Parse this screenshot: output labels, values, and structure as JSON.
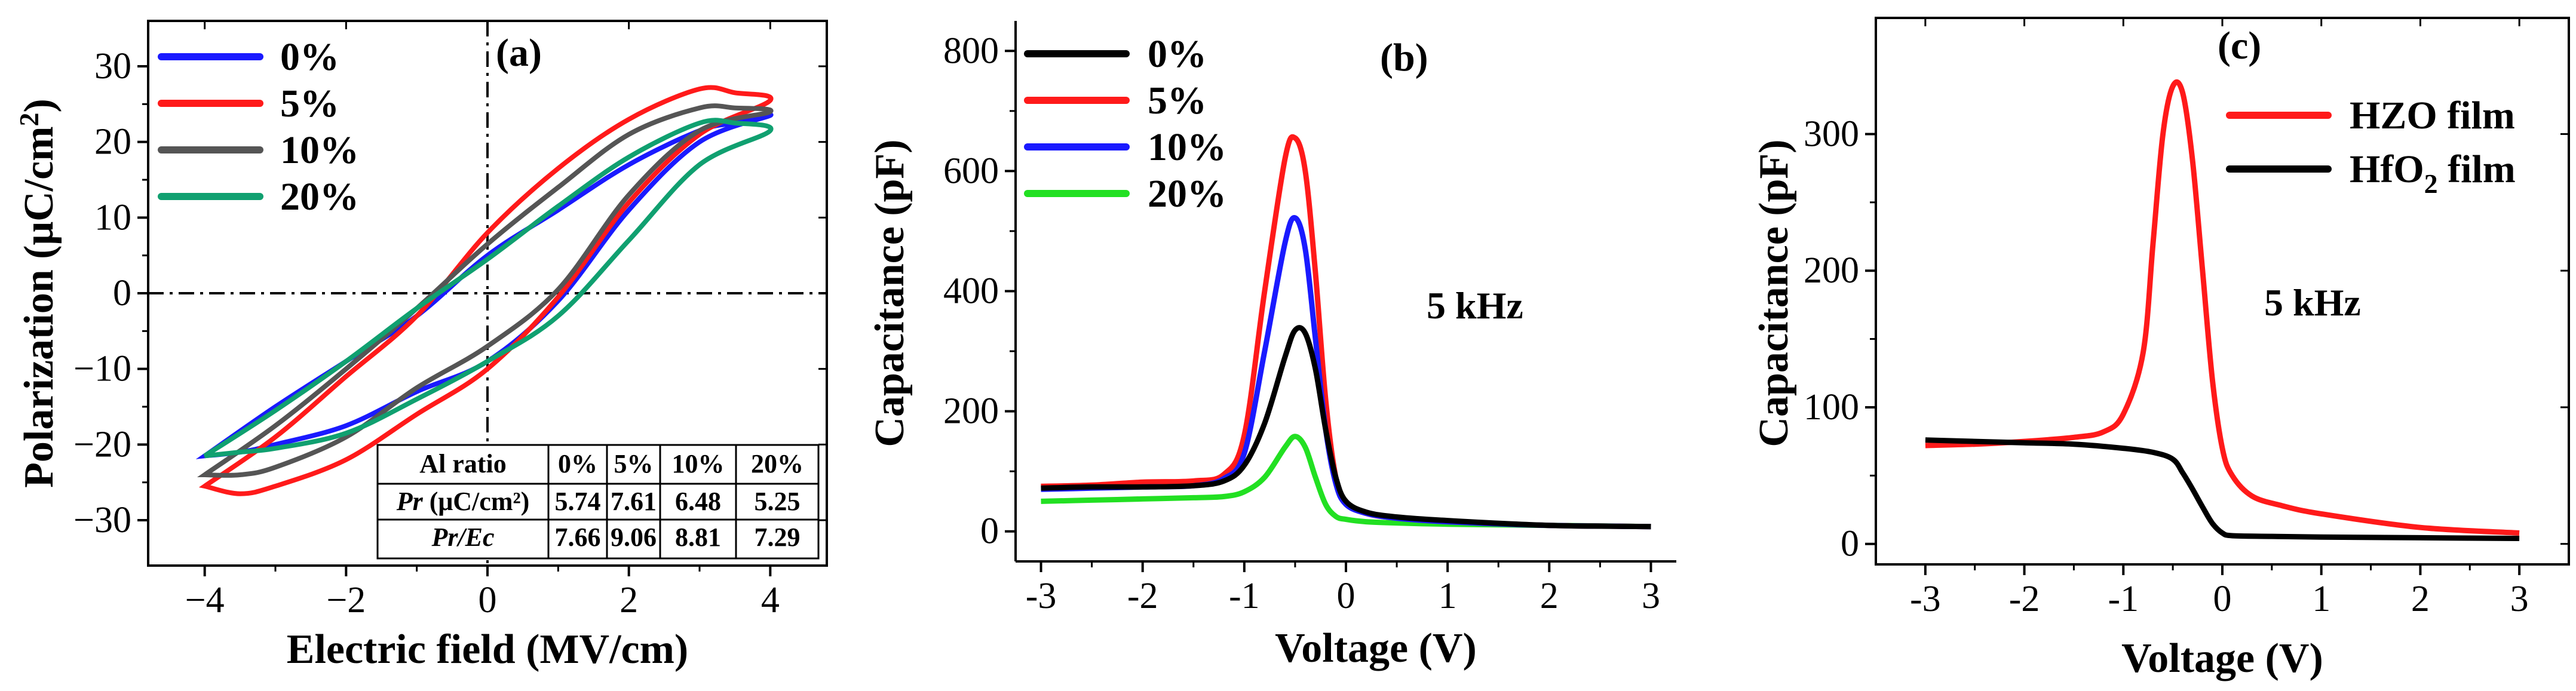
{
  "colors": {
    "black": "#000000",
    "blue": "#1a1aff",
    "red": "#ff1a1a",
    "gray": "#555555",
    "green_a": "#10a070",
    "green_b": "#22e022"
  },
  "chart_data": [
    {
      "type": "line",
      "panel_label": "(a)",
      "xlabel": "Electric field (MV/cm)",
      "ylabel": "Polarization (μC/cm²)",
      "ylabel_parts": {
        "main": "Polarization (μC/cm",
        "sup": "2",
        "end": ")"
      },
      "xlim": [
        -4.8,
        4.8
      ],
      "ylim": [
        -36,
        36
      ],
      "xticks": [
        -4,
        -2,
        0,
        2,
        4
      ],
      "xtick_labels": [
        "−4",
        "−2",
        "0",
        "2",
        "4"
      ],
      "yticks": [
        -30,
        -20,
        -10,
        0,
        10,
        20,
        30
      ],
      "ytick_labels": [
        "−30",
        "−20",
        "−10",
        "0",
        "10",
        "20",
        "30"
      ],
      "legend_position": "top-left",
      "series": [
        {
          "name": "0%",
          "color": "blue",
          "upper": {
            "x": [
              -4,
              -3,
              -2,
              -1,
              0,
              1,
              2,
              3,
              3.5,
              4
            ],
            "y": [
              -21.5,
              -15,
              -9,
              -3,
              5,
              11,
              17,
              21.5,
              22.5,
              23.5
            ]
          },
          "lower": {
            "x": [
              4,
              3,
              2,
              1,
              0,
              -1,
              -2,
              -3,
              -3.5,
              -4
            ],
            "y": [
              23.5,
              20,
              11,
              -1,
              -9,
              -13,
              -17.5,
              -20,
              -21,
              -21.5
            ]
          }
        },
        {
          "name": "5%",
          "color": "red",
          "upper": {
            "x": [
              -4,
              -3,
              -2,
              -1,
              0,
              1,
              2,
              3,
              3.5,
              4
            ],
            "y": [
              -25.5,
              -19,
              -11,
              -3,
              8,
              16.5,
              23,
              27,
              26.5,
              25.5
            ]
          },
          "lower": {
            "x": [
              4,
              3,
              2,
              1,
              0,
              -1,
              -2,
              -3,
              -3.5,
              -4
            ],
            "y": [
              25.5,
              21,
              12,
              -0.5,
              -10,
              -16,
              -22,
              -25.5,
              -26.5,
              -25.5
            ]
          }
        },
        {
          "name": "10%",
          "color": "gray",
          "upper": {
            "x": [
              -4,
              -3,
              -2,
              -1,
              0,
              1,
              2,
              3,
              3.5,
              4
            ],
            "y": [
              -24,
              -17.5,
              -10,
              -2,
              6.5,
              14,
              21,
              24.5,
              24.5,
              24
            ]
          },
          "lower": {
            "x": [
              4,
              3,
              2,
              1,
              0,
              -1,
              -2,
              -3,
              -3.5,
              -4
            ],
            "y": [
              24,
              21.5,
              13,
              0.5,
              -7,
              -12.5,
              -19,
              -23,
              -24,
              -24
            ]
          }
        },
        {
          "name": "20%",
          "color": "green_a",
          "upper": {
            "x": [
              -4,
              -3,
              -2,
              -1,
              0,
              1,
              2,
              3,
              3.5,
              4
            ],
            "y": [
              -21.5,
              -15.5,
              -9,
              -2,
              4.5,
              11.5,
              18,
              22.5,
              22.5,
              21.5
            ]
          },
          "lower": {
            "x": [
              4,
              3,
              2,
              1,
              0,
              -1,
              -2,
              -3,
              -3.5,
              -4
            ],
            "y": [
              21.5,
              17,
              7,
              -3,
              -9,
              -14,
              -18.5,
              -20.5,
              -21,
              -21.5
            ]
          }
        }
      ],
      "table": {
        "headers": [
          "Al ratio",
          "0%",
          "5%",
          "10%",
          "20%"
        ],
        "rows": [
          {
            "label_main": "Pr",
            "label_unit": " (μC/cm²)",
            "values": [
              "5.74",
              "7.61",
              "6.48",
              "5.25"
            ]
          },
          {
            "label_main": "Pr/Ec",
            "label_unit": "",
            "values": [
              "7.66",
              "9.06",
              "8.81",
              "7.29"
            ]
          }
        ]
      }
    },
    {
      "type": "line",
      "panel_label": "(b)",
      "xlabel": "Voltage (V)",
      "ylabel": "Capacitance (pF)",
      "annotation": "5 kHz",
      "xlim": [
        -3.25,
        3.25
      ],
      "ylim": [
        -50,
        850
      ],
      "xticks": [
        -3,
        -2,
        -1,
        0,
        1,
        2,
        3
      ],
      "xtick_labels": [
        "-3",
        "-2",
        "-1",
        "0",
        "1",
        "2",
        "3"
      ],
      "yticks": [
        0,
        200,
        400,
        600,
        800
      ],
      "ytick_labels": [
        "0",
        "200",
        "400",
        "600",
        "800"
      ],
      "legend_position": "top-left",
      "series": [
        {
          "name": "0%",
          "color": "black",
          "x": [
            -3,
            -2.5,
            -2,
            -1.5,
            -1.2,
            -1,
            -0.8,
            -0.6,
            -0.5,
            -0.4,
            -0.3,
            -0.2,
            -0.1,
            0,
            0.2,
            0.5,
            1,
            2,
            3
          ],
          "y": [
            72,
            74,
            74,
            76,
            84,
            110,
            180,
            290,
            335,
            330,
            270,
            170,
            90,
            50,
            32,
            24,
            18,
            10,
            8
          ]
        },
        {
          "name": "5%",
          "color": "red",
          "x": [
            -3,
            -2.5,
            -2,
            -1.5,
            -1.2,
            -1,
            -0.8,
            -0.6,
            -0.5,
            -0.4,
            -0.3,
            -0.2,
            -0.1,
            0,
            0.2,
            0.5,
            1,
            2,
            3
          ],
          "y": [
            75,
            77,
            82,
            84,
            95,
            160,
            400,
            620,
            655,
            600,
            430,
            220,
            90,
            48,
            30,
            22,
            16,
            10,
            8
          ]
        },
        {
          "name": "10%",
          "color": "blue",
          "x": [
            -3,
            -2.5,
            -2,
            -1.5,
            -1.2,
            -1,
            -0.8,
            -0.6,
            -0.5,
            -0.4,
            -0.3,
            -0.2,
            -0.1,
            0,
            0.2,
            0.5,
            1,
            2,
            3
          ],
          "y": [
            70,
            72,
            74,
            76,
            88,
            130,
            300,
            480,
            522,
            470,
            320,
            170,
            80,
            45,
            30,
            22,
            16,
            10,
            8
          ]
        },
        {
          "name": "20%",
          "color": "green_b",
          "x": [
            -3,
            -2.5,
            -2,
            -1.5,
            -1.2,
            -1,
            -0.8,
            -0.6,
            -0.5,
            -0.4,
            -0.3,
            -0.2,
            -0.1,
            0,
            0.2,
            0.5,
            1,
            2,
            3
          ],
          "y": [
            50,
            52,
            54,
            56,
            58,
            66,
            90,
            140,
            158,
            140,
            90,
            45,
            25,
            20,
            16,
            14,
            12,
            10,
            8
          ]
        }
      ]
    },
    {
      "type": "line",
      "panel_label": "(c)",
      "xlabel": "Voltage (V)",
      "ylabel": "Capacitance (pF)",
      "annotation": "5 kHz",
      "xlim": [
        -3.5,
        3.5
      ],
      "ylim": [
        -15,
        385
      ],
      "xticks": [
        -3,
        -2,
        -1,
        0,
        1,
        2,
        3
      ],
      "xtick_labels": [
        "-3",
        "-2",
        "-1",
        "0",
        "1",
        "2",
        "3"
      ],
      "yticks": [
        0,
        100,
        200,
        300
      ],
      "ytick_labels": [
        "0",
        "100",
        "200",
        "300"
      ],
      "legend_position": "top-right",
      "series": [
        {
          "name": "HZO film",
          "name_parts": {
            "main": "HZO film"
          },
          "color": "red",
          "x": [
            -3,
            -2.5,
            -2,
            -1.5,
            -1.2,
            -1,
            -0.8,
            -0.7,
            -0.6,
            -0.5,
            -0.4,
            -0.3,
            -0.2,
            -0.1,
            0,
            0.1,
            0.3,
            0.6,
            1,
            2,
            3
          ],
          "y": [
            72,
            73,
            75,
            78,
            82,
            95,
            140,
            220,
            300,
            335,
            330,
            280,
            200,
            120,
            70,
            50,
            35,
            28,
            22,
            12,
            8
          ]
        },
        {
          "name": "HfO2 film",
          "name_parts": {
            "main": "HfO",
            "sub": "2",
            "end": " film"
          },
          "color": "black",
          "x": [
            -3,
            -2.5,
            -2,
            -1.5,
            -1,
            -0.7,
            -0.5,
            -0.4,
            -0.3,
            -0.2,
            -0.1,
            0,
            0.1,
            0.5,
            1,
            2,
            3
          ],
          "y": [
            76,
            75,
            74,
            73,
            70,
            67,
            62,
            52,
            40,
            27,
            15,
            8,
            6,
            5.5,
            5,
            4.5,
            4
          ]
        }
      ]
    }
  ]
}
